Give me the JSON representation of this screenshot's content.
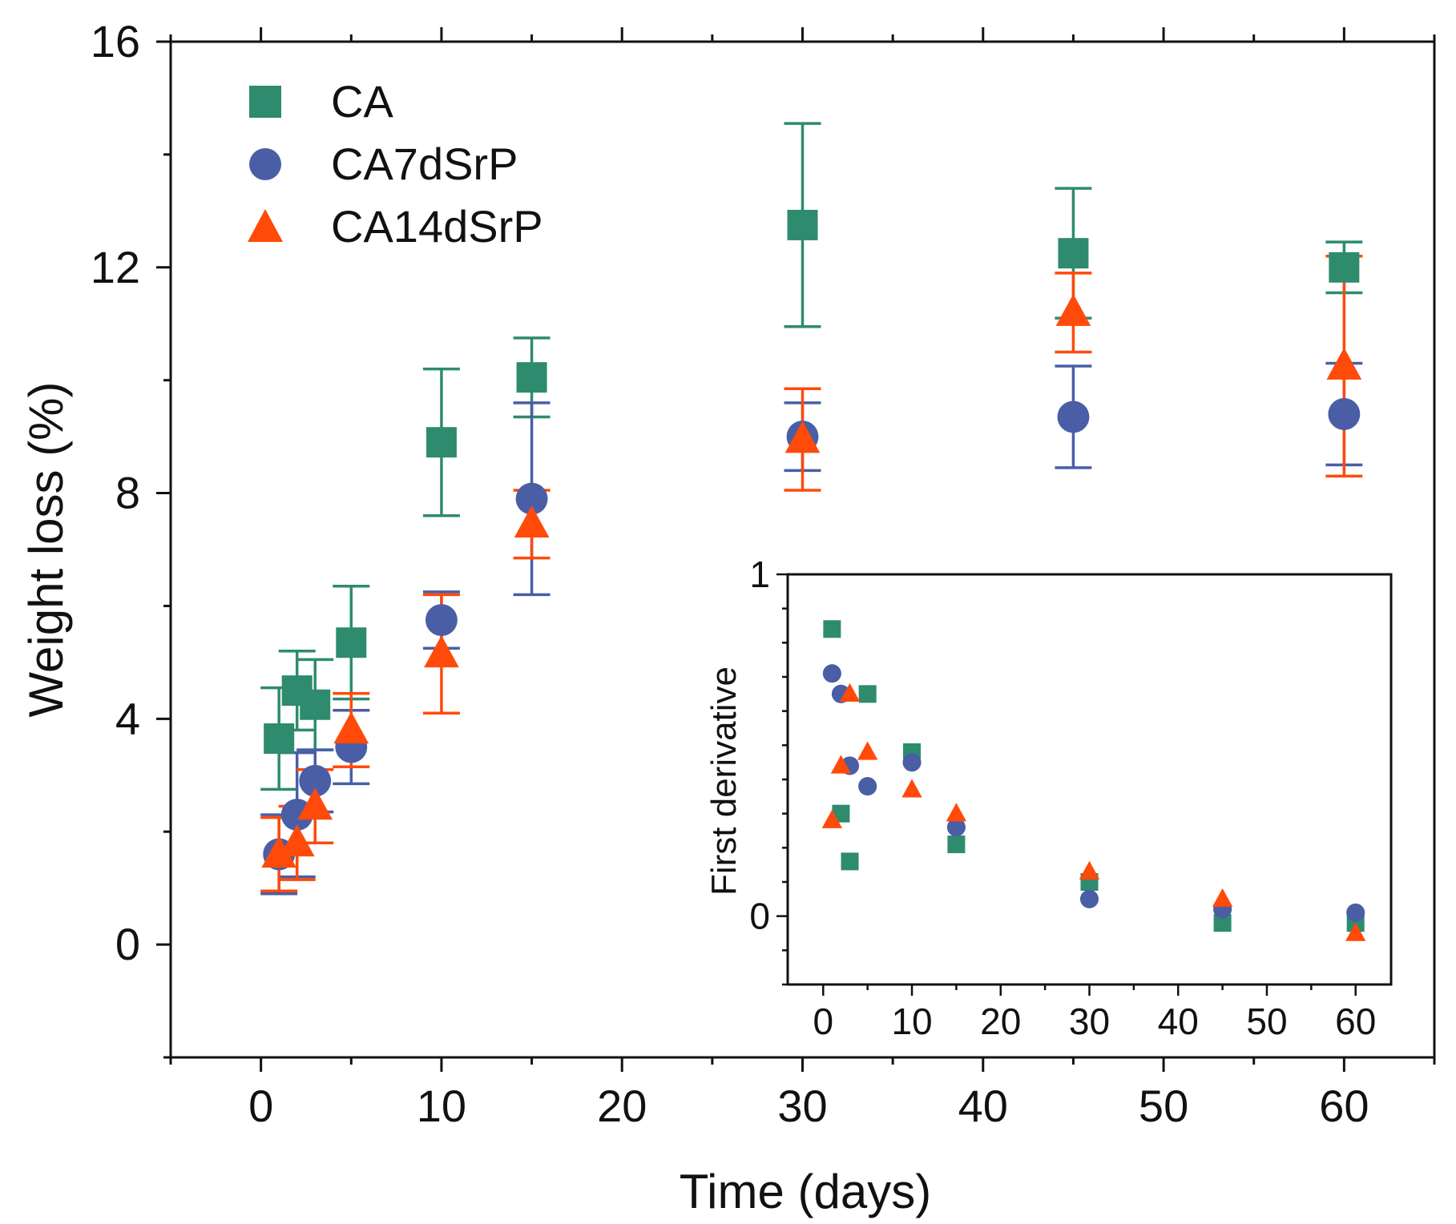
{
  "colors": {
    "CA": "#2e8b6e",
    "CA7dSrP": "#4a5ea6",
    "CA14dSrP": "#ff4a0a",
    "axis": "#111111"
  },
  "legend": {
    "items": [
      {
        "name": "CA",
        "marker": "square",
        "color": "#2e8b6e"
      },
      {
        "name": "CA7dSrP",
        "marker": "circle",
        "color": "#4a5ea6"
      },
      {
        "name": "CA14dSrP",
        "marker": "triangle",
        "color": "#ff4a0a"
      }
    ]
  },
  "chart_data": [
    {
      "type": "scatter",
      "title": "",
      "xlabel": "Time (days)",
      "ylabel": "Weight loss (%)",
      "xlim": [
        -5,
        65
      ],
      "ylim": [
        -2,
        16
      ],
      "xticks": [
        0,
        10,
        20,
        30,
        40,
        50,
        60
      ],
      "yticks": [
        0,
        4,
        8,
        12,
        16
      ],
      "legend_position": "top-left",
      "x": [
        1,
        2,
        3,
        5,
        10,
        15,
        30,
        45,
        60
      ],
      "series": [
        {
          "name": "CA",
          "marker": "square",
          "color": "#2e8b6e",
          "values": [
            3.65,
            4.5,
            4.25,
            5.35,
            8.9,
            10.05,
            12.75,
            12.25,
            12.0
          ],
          "errors": [
            0.9,
            0.7,
            0.8,
            1.0,
            1.3,
            0.7,
            1.8,
            1.15,
            0.45
          ]
        },
        {
          "name": "CA7dSrP",
          "marker": "circle",
          "color": "#4a5ea6",
          "values": [
            1.6,
            2.3,
            2.9,
            3.5,
            5.75,
            7.9,
            9.0,
            9.35,
            9.4
          ],
          "errors": [
            0.7,
            1.1,
            0.55,
            0.65,
            0.5,
            1.7,
            0.6,
            0.9,
            0.9
          ]
        },
        {
          "name": "CA14dSrP",
          "marker": "triangle",
          "color": "#ff4a0a",
          "values": [
            1.6,
            1.8,
            2.45,
            3.8,
            5.15,
            7.45,
            8.95,
            11.2,
            10.25
          ],
          "errors": [
            0.65,
            0.65,
            0.65,
            0.65,
            1.05,
            0.6,
            0.9,
            0.7,
            1.95
          ]
        }
      ]
    },
    {
      "type": "scatter",
      "title": "",
      "xlabel": "",
      "ylabel": "First derivative",
      "xlim": [
        -4,
        64
      ],
      "ylim": [
        -0.2,
        1
      ],
      "xticks": [
        0,
        10,
        20,
        30,
        40,
        50,
        60
      ],
      "yticks": [
        0,
        1
      ],
      "legend_position": "none",
      "x": [
        1,
        2,
        3,
        5,
        10,
        15,
        30,
        45,
        60
      ],
      "series": [
        {
          "name": "CA",
          "marker": "square",
          "color": "#2e8b6e",
          "values": [
            0.84,
            0.3,
            0.16,
            0.65,
            0.48,
            0.21,
            0.1,
            -0.02,
            -0.02
          ]
        },
        {
          "name": "CA7dSrP",
          "marker": "circle",
          "color": "#4a5ea6",
          "values": [
            0.71,
            0.65,
            0.44,
            0.38,
            0.45,
            0.26,
            0.05,
            0.02,
            0.01
          ]
        },
        {
          "name": "CA14dSrP",
          "marker": "triangle",
          "color": "#ff4a0a",
          "values": [
            0.28,
            0.44,
            0.65,
            0.48,
            0.37,
            0.3,
            0.13,
            0.05,
            -0.05
          ]
        }
      ]
    }
  ]
}
